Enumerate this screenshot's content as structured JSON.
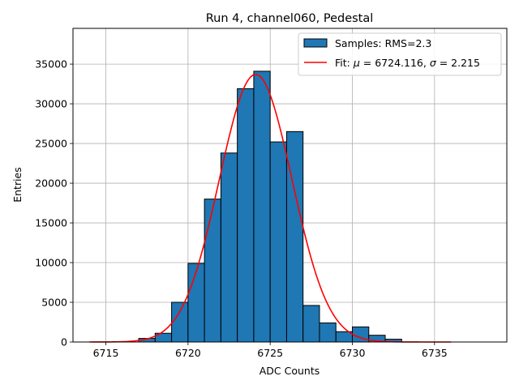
{
  "chart_data": {
    "type": "bar",
    "title": "Run 4, channel060, Pedestal",
    "xlabel": "ADC Counts",
    "ylabel": "Entries",
    "xlim": [
      6713.0,
      6739.4
    ],
    "ylim": [
      0,
      39500
    ],
    "xticks": [
      6715,
      6720,
      6725,
      6730,
      6735
    ],
    "yticks": [
      0,
      5000,
      10000,
      15000,
      20000,
      25000,
      30000,
      35000
    ],
    "grid": true,
    "legend_position": "top-right",
    "bar_color": "#1f77b4",
    "fit_color": "#ff0000",
    "series": [
      {
        "name": "Samples: RMS=2.3",
        "kind": "histogram",
        "bin_width": 1,
        "bins": [
          {
            "x0": 6717,
            "count": 450
          },
          {
            "x0": 6718,
            "count": 1100
          },
          {
            "x0": 6719,
            "count": 5000
          },
          {
            "x0": 6720,
            "count": 9900
          },
          {
            "x0": 6721,
            "count": 18000
          },
          {
            "x0": 6722,
            "count": 23800
          },
          {
            "x0": 6723,
            "count": 31900
          },
          {
            "x0": 6724,
            "count": 34100
          },
          {
            "x0": 6725,
            "count": 25200
          },
          {
            "x0": 6726,
            "count": 26500
          },
          {
            "x0": 6727,
            "count": 4600
          },
          {
            "x0": 6728,
            "count": 2400
          },
          {
            "x0": 6729,
            "count": 1300
          },
          {
            "x0": 6730,
            "count": 1900
          },
          {
            "x0": 6731,
            "count": 850
          },
          {
            "x0": 6732,
            "count": 350
          }
        ]
      },
      {
        "name": "Fit: μ = 6724.116, σ = 2.215",
        "kind": "gaussian-fit",
        "mu": 6724.116,
        "sigma": 2.215,
        "amplitude": 33700,
        "x_range": [
          6714,
          6736
        ]
      }
    ]
  }
}
